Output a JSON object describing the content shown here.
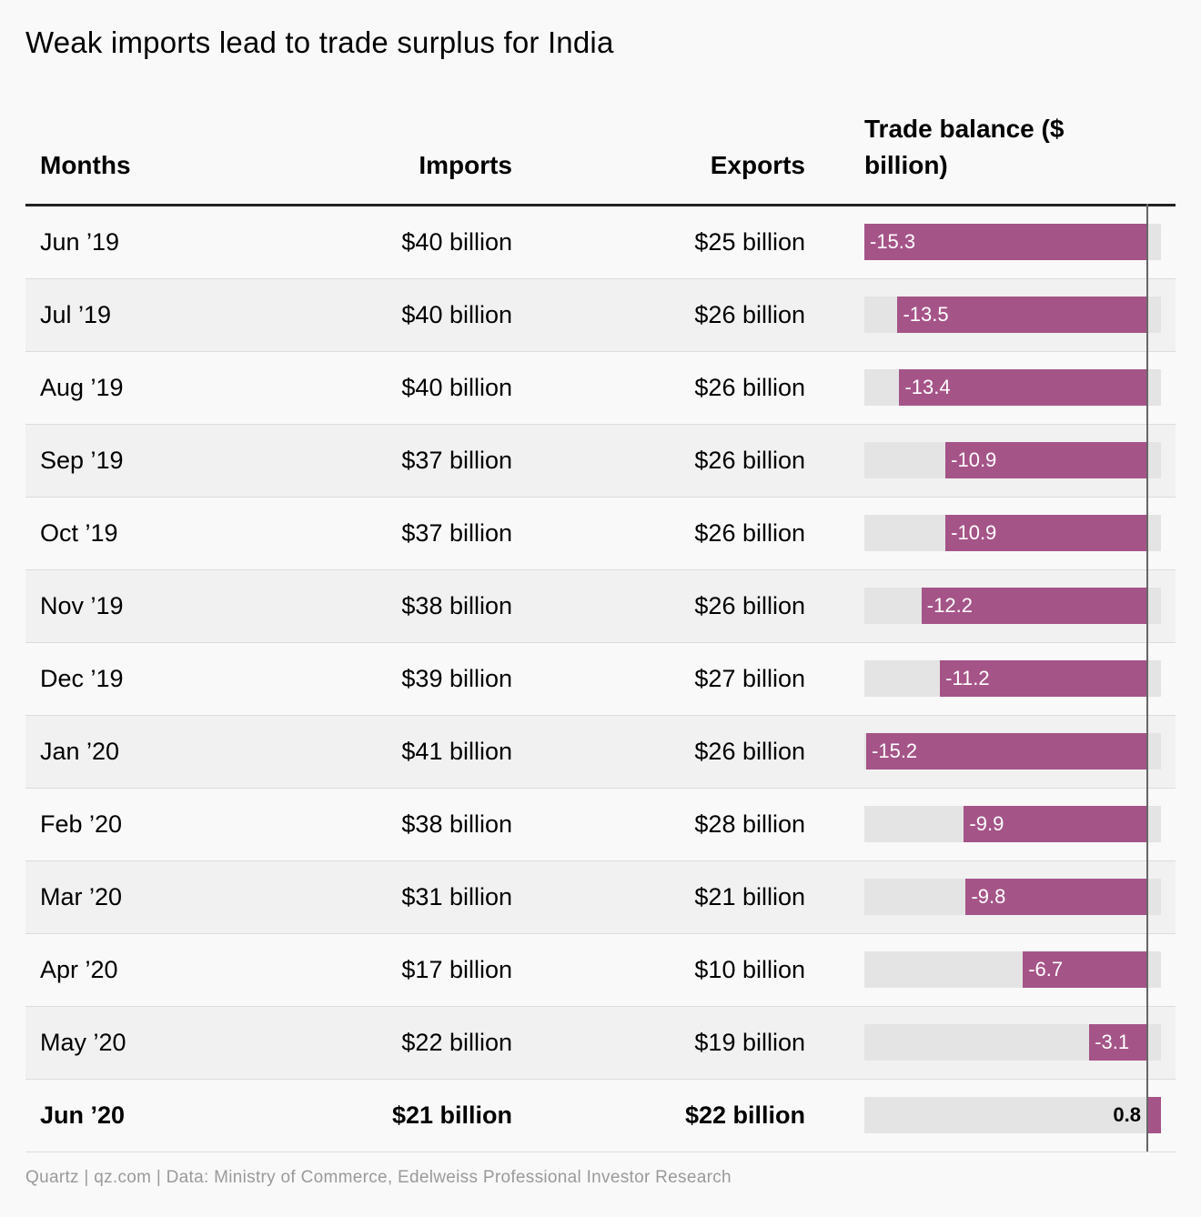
{
  "title": "Weak imports lead to trade surplus for India",
  "headers": {
    "months": "Months",
    "imports": "Imports",
    "exports": "Exports",
    "balance": "Trade balance ($ billion)"
  },
  "chart_data": {
    "type": "table",
    "title": "Weak imports lead to trade surplus for India",
    "columns": [
      "Months",
      "Imports",
      "Exports",
      "Trade balance ($ billion)"
    ],
    "bar_color": "#a55488",
    "track_color": "#e4e4e4",
    "domain": [
      -15.3,
      0.8
    ],
    "rows": [
      {
        "month": "Jun ’19",
        "imports": "$40 billion",
        "exports": "$25 billion",
        "balance": -15.3,
        "label": "-15.3"
      },
      {
        "month": "Jul ’19",
        "imports": "$40 billion",
        "exports": "$26 billion",
        "balance": -13.5,
        "label": "-13.5"
      },
      {
        "month": "Aug ’19",
        "imports": "$40 billion",
        "exports": "$26 billion",
        "balance": -13.4,
        "label": "-13.4"
      },
      {
        "month": "Sep ’19",
        "imports": "$37 billion",
        "exports": "$26 billion",
        "balance": -10.9,
        "label": "-10.9"
      },
      {
        "month": "Oct ’19",
        "imports": "$37 billion",
        "exports": "$26 billion",
        "balance": -10.9,
        "label": "-10.9"
      },
      {
        "month": "Nov ’19",
        "imports": "$38 billion",
        "exports": "$26 billion",
        "balance": -12.2,
        "label": "-12.2"
      },
      {
        "month": "Dec ’19",
        "imports": "$39 billion",
        "exports": "$27 billion",
        "balance": -11.2,
        "label": "-11.2"
      },
      {
        "month": "Jan ’20",
        "imports": "$41 billion",
        "exports": "$26 billion",
        "balance": -15.2,
        "label": "-15.2"
      },
      {
        "month": "Feb ’20",
        "imports": "$38 billion",
        "exports": "$28 billion",
        "balance": -9.9,
        "label": "-9.9"
      },
      {
        "month": "Mar ’20",
        "imports": "$31 billion",
        "exports": "$21 billion",
        "balance": -9.8,
        "label": "-9.8"
      },
      {
        "month": "Apr ’20",
        "imports": "$17 billion",
        "exports": "$10 billion",
        "balance": -6.7,
        "label": "-6.7"
      },
      {
        "month": "May ’20",
        "imports": "$22 billion",
        "exports": "$19 billion",
        "balance": -3.1,
        "label": "-3.1"
      },
      {
        "month": "Jun ’20",
        "imports": "$21 billion",
        "exports": "$22 billion",
        "balance": 0.8,
        "label": "0.8",
        "highlight": true
      }
    ]
  },
  "footer": "Quartz | qz.com | Data: Ministry of Commerce, Edelweiss Professional Investor Research"
}
